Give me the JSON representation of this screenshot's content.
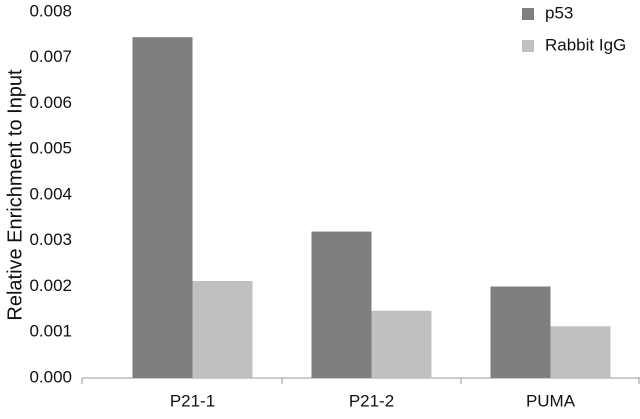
{
  "chart_data": {
    "type": "bar",
    "y_label": "Relative Enrichment to Input",
    "categories": [
      "P21-1",
      "P21-2",
      "PUMA"
    ],
    "series": [
      {
        "name": "p53",
        "color": "#7f7f7f",
        "values": [
          0.00745,
          0.0032,
          0.002
        ]
      },
      {
        "name": "Rabbit IgG",
        "color": "#c0c0c0",
        "values": [
          0.00212,
          0.00147,
          0.00113
        ]
      }
    ],
    "ylim": [
      0,
      0.008
    ],
    "yticks": [
      {
        "value": 0,
        "label": "0.000"
      },
      {
        "value": 0.001,
        "label": "0.001"
      },
      {
        "value": 0.002,
        "label": "0.002"
      },
      {
        "value": 0.003,
        "label": "0.003"
      },
      {
        "value": 0.004,
        "label": "0.004"
      },
      {
        "value": 0.005,
        "label": "0.005"
      },
      {
        "value": 0.006,
        "label": "0.006"
      },
      {
        "value": 0.007,
        "label": "0.007"
      },
      {
        "value": 0.008,
        "label": "0.008"
      }
    ],
    "legend": "top-right"
  }
}
